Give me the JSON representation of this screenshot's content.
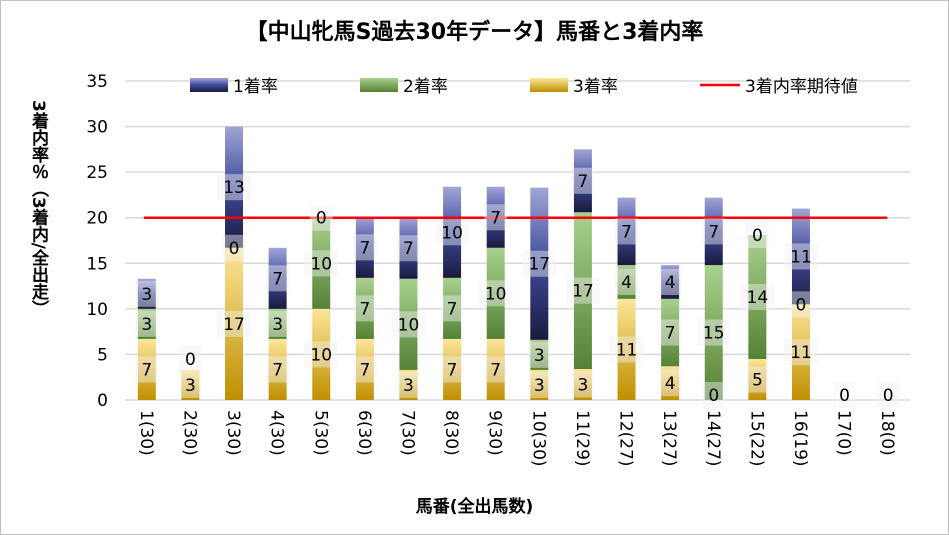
{
  "chart_data": {
    "type": "bar",
    "stacked": true,
    "title": "【中山牝馬S過去30年データ】馬番と3着内率",
    "xlabel": "馬番(全出馬数)",
    "ylabel": "3着内率％（3着内/全出走）",
    "ylim": [
      0,
      35
    ],
    "yticks": [
      0,
      5,
      10,
      15,
      20,
      25,
      30,
      35
    ],
    "grid": true,
    "legend_position": "top",
    "categories": [
      "1(30)",
      "2(30)",
      "3(30)",
      "4(30)",
      "5(30)",
      "6(30)",
      "7(30)",
      "8(30)",
      "9(30)",
      "10(30)",
      "11(29)",
      "12(27)",
      "13(27)",
      "14(27)",
      "15(22)",
      "16(19)",
      "17(0)",
      "18(0)"
    ],
    "series": [
      {
        "name": "3着率",
        "color": "#d4a520",
        "values": [
          6.7,
          3.3,
          16.7,
          6.7,
          10,
          6.7,
          3.3,
          6.7,
          6.7,
          3.3,
          3.4,
          11.1,
          3.7,
          0,
          4.5,
          10.5,
          0,
          0
        ]
      },
      {
        "name": "2着率",
        "color": "#70ad47",
        "values": [
          3.3,
          0,
          0,
          3.3,
          10,
          6.7,
          10,
          6.7,
          10,
          3.3,
          17.2,
          3.7,
          7.4,
          14.8,
          13.6,
          0,
          0,
          0
        ]
      },
      {
        "name": "1着率",
        "color": "#4a55a8",
        "values": [
          3.3,
          0,
          13.3,
          6.7,
          0,
          6.7,
          6.7,
          10,
          6.7,
          16.7,
          6.9,
          7.4,
          3.7,
          7.4,
          0,
          10.5,
          0,
          0
        ]
      }
    ],
    "reference_line": {
      "name": "3着内率期待値",
      "value": 20,
      "color": "#ff0000"
    },
    "data_labels": "rounded percent"
  }
}
